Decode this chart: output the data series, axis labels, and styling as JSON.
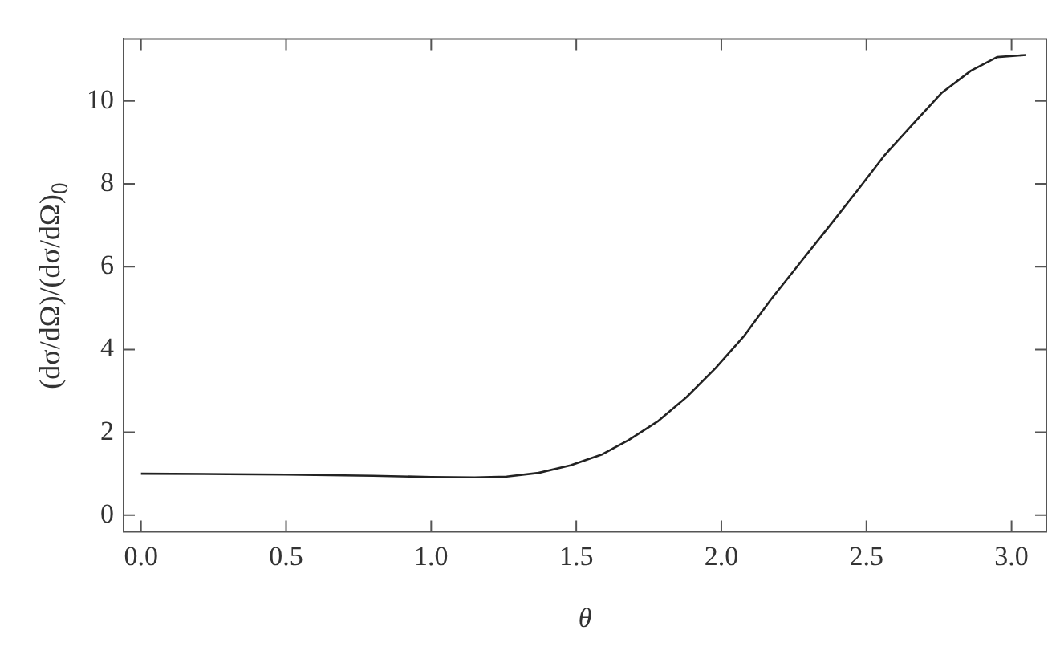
{
  "chart_data": {
    "type": "line",
    "xlabel": "θ",
    "ylabel": "(dσ/dΩ)/(dσ/dΩ)$_{0}$",
    "xlim": [
      -0.06,
      3.12
    ],
    "ylim": [
      -0.4,
      11.5
    ],
    "xticks": [
      {
        "value": 0,
        "label": "0.0"
      },
      {
        "value": 0.5,
        "label": "0.5"
      },
      {
        "value": 1,
        "label": "1.0"
      },
      {
        "value": 1.5,
        "label": "1.5"
      },
      {
        "value": 2,
        "label": "2.0"
      },
      {
        "value": 2.5,
        "label": "2.5"
      },
      {
        "value": 3,
        "label": "3.0"
      }
    ],
    "yticks": [
      0,
      2,
      4,
      6,
      8,
      10
    ],
    "grid": false,
    "legend": false,
    "marker": "none",
    "line_style": "solid",
    "series": [
      {
        "color": "#222222",
        "x": [
          0,
          0.3,
          0.5,
          0.8,
          1.0,
          1.15,
          1.26,
          1.37,
          1.48,
          1.59,
          1.68,
          1.78,
          1.88,
          1.98,
          2.08,
          2.17,
          2.27,
          2.37,
          2.47,
          2.56,
          2.66,
          2.76,
          2.86,
          2.95,
          3.05
        ],
        "values": [
          1.0,
          0.99,
          0.98,
          0.95,
          0.92,
          0.91,
          0.93,
          1.02,
          1.2,
          1.47,
          1.81,
          2.26,
          2.85,
          3.55,
          4.34,
          5.2,
          6.08,
          6.96,
          7.85,
          8.67,
          9.44,
          10.2,
          10.73,
          11.06,
          11.11
        ]
      }
    ]
  }
}
